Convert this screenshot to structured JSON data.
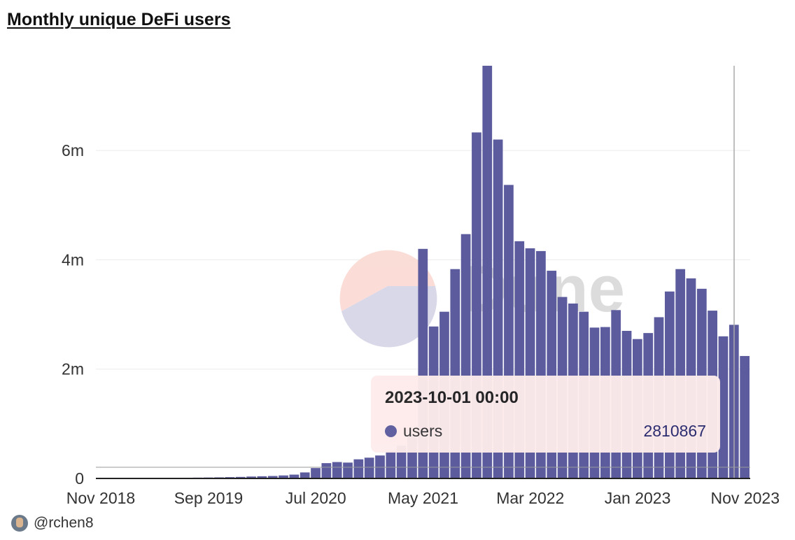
{
  "title": "Monthly unique DeFi users",
  "watermark": "Dune",
  "author": "@rchen8",
  "colors": {
    "bar": "#5b5b9e",
    "grid": "#ececec",
    "tooltip_bg": "#fdeceb"
  },
  "tooltip": {
    "date": "2023-10-01 00:00",
    "series": "users",
    "value": "2810867"
  },
  "chart_data": {
    "type": "bar",
    "x_tick_labels": [
      "Nov 2018",
      "Sep 2019",
      "Jul 2020",
      "May 2021",
      "Mar 2022",
      "Jan 2023",
      "Nov 2023"
    ],
    "y_tick_labels": [
      "0",
      "2m",
      "4m",
      "6m"
    ],
    "y_ticks": [
      0,
      2000000,
      4000000,
      6000000
    ],
    "ylim": [
      0,
      7550000
    ],
    "grid": true,
    "categories": [
      "2018-11",
      "2018-12",
      "2019-01",
      "2019-02",
      "2019-03",
      "2019-04",
      "2019-05",
      "2019-06",
      "2019-07",
      "2019-08",
      "2019-09",
      "2019-10",
      "2019-11",
      "2019-12",
      "2020-01",
      "2020-02",
      "2020-03",
      "2020-04",
      "2020-05",
      "2020-06",
      "2020-07",
      "2020-08",
      "2020-09",
      "2020-10",
      "2020-11",
      "2020-12",
      "2021-01",
      "2021-02",
      "2021-03",
      "2021-04",
      "2021-05",
      "2021-06",
      "2021-07",
      "2021-08",
      "2021-09",
      "2021-10",
      "2021-11",
      "2021-12",
      "2022-01",
      "2022-02",
      "2022-03",
      "2022-04",
      "2022-05",
      "2022-06",
      "2022-07",
      "2022-08",
      "2022-09",
      "2022-10",
      "2022-11",
      "2022-12",
      "2023-01",
      "2023-02",
      "2023-03",
      "2023-04",
      "2023-05",
      "2023-06",
      "2023-07",
      "2023-08",
      "2023-09",
      "2023-10",
      "2023-11"
    ],
    "series": [
      {
        "values": [
          5000,
          6000,
          7000,
          8000,
          9000,
          10000,
          11000,
          12000,
          13000,
          15000,
          17000,
          20000,
          24000,
          28000,
          35000,
          40000,
          45000,
          55000,
          70000,
          110000,
          190000,
          280000,
          300000,
          290000,
          350000,
          380000,
          420000,
          500000,
          600000,
          800000,
          4200000,
          2780000,
          3050000,
          3830000,
          4470000,
          6330000,
          7550000,
          6200000,
          5370000,
          4340000,
          4210000,
          4160000,
          3800000,
          3320000,
          3200000,
          3050000,
          2760000,
          2770000,
          3080000,
          2700000,
          2550000,
          2660000,
          2950000,
          3420000,
          3830000,
          3660000,
          3470000,
          3070000,
          2600000,
          2810867,
          2240000
        ]
      }
    ]
  }
}
